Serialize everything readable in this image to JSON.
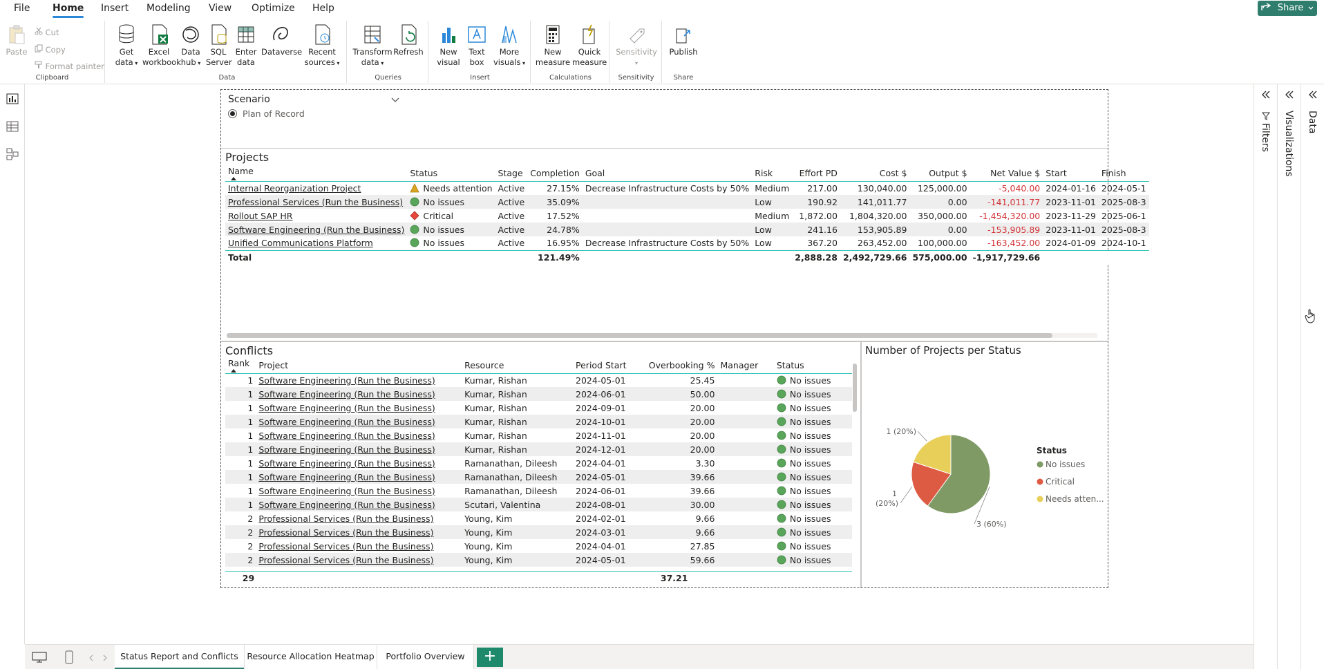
{
  "menu": {
    "items": [
      "File",
      "Home",
      "Insert",
      "Modeling",
      "View",
      "Optimize",
      "Help"
    ],
    "active": "Home",
    "share_label": "Share"
  },
  "ribbon": {
    "clipboard": {
      "label": "Clipboard",
      "paste": "Paste",
      "cut": "Cut",
      "copy": "Copy",
      "format_painter": "Format painter"
    },
    "data": {
      "label": "Data",
      "get_data": [
        "Get",
        "data"
      ],
      "excel": [
        "Excel",
        "workbook"
      ],
      "data_hub": [
        "Data",
        "hub"
      ],
      "sql": [
        "SQL",
        "Server"
      ],
      "enter_data": [
        "Enter",
        "data"
      ],
      "dataverse": "Dataverse",
      "recent": [
        "Recent",
        "sources"
      ]
    },
    "queries": {
      "label": "Queries",
      "transform": [
        "Transform",
        "data"
      ],
      "refresh": "Refresh"
    },
    "insert": {
      "label": "Insert",
      "new_visual": [
        "New",
        "visual"
      ],
      "text_box": [
        "Text",
        "box"
      ],
      "more_visuals": [
        "More",
        "visuals"
      ]
    },
    "calculations": {
      "label": "Calculations",
      "new_measure": [
        "New",
        "measure"
      ],
      "quick_measure": [
        "Quick",
        "measure"
      ]
    },
    "sensitivity": {
      "label": "Sensitivity",
      "btn": "Sensitivity"
    },
    "share": {
      "label": "Share",
      "publish": "Publish"
    }
  },
  "scenario": {
    "title": "Scenario",
    "option": "Plan of Record"
  },
  "projects": {
    "title": "Projects",
    "columns": [
      "Name",
      "Status",
      "Stage",
      "Completion",
      "Goal",
      "Risk",
      "Effort PD",
      "Cost $",
      "Output $",
      "Net Value $",
      "Start",
      "Finish"
    ],
    "rows": [
      {
        "name": "Internal Reorganization Project",
        "status": "Needs attention",
        "status_icon": "warning-triangle-icon",
        "stage": "Active",
        "completion": "27.15%",
        "goal": "Decrease Infrastructure Costs by 50%",
        "risk": "Medium",
        "effort": "217.00",
        "cost": "130,040.00",
        "output": "125,000.00",
        "net": "-5,040.00",
        "start": "2024-01-16",
        "finish": "2024-05-1"
      },
      {
        "name": "Professional Services (Run the Business)",
        "status": "No issues",
        "status_icon": "green-circle-icon",
        "stage": "Active",
        "completion": "35.09%",
        "goal": "",
        "risk": "Low",
        "effort": "190.92",
        "cost": "141,011.77",
        "output": "0.00",
        "net": "-141,011.77",
        "start": "2023-11-01",
        "finish": "2025-08-3"
      },
      {
        "name": "Rollout SAP HR",
        "status": "Critical",
        "status_icon": "red-diamond-icon",
        "stage": "Active",
        "completion": "17.52%",
        "goal": "",
        "risk": "Medium",
        "effort": "1,872.00",
        "cost": "1,804,320.00",
        "output": "350,000.00",
        "net": "-1,454,320.00",
        "start": "2023-11-29",
        "finish": "2025-06-1"
      },
      {
        "name": "Software Engineering (Run the Business)",
        "status": "No issues",
        "status_icon": "green-circle-icon",
        "stage": "Active",
        "completion": "24.78%",
        "goal": "",
        "risk": "Low",
        "effort": "241.16",
        "cost": "153,905.89",
        "output": "0.00",
        "net": "-153,905.89",
        "start": "2023-11-01",
        "finish": "2025-08-3"
      },
      {
        "name": "Unified Communications Platform",
        "status": "No issues",
        "status_icon": "green-circle-icon",
        "stage": "Active",
        "completion": "16.95%",
        "goal": "Decrease Infrastructure Costs by 50%",
        "risk": "Low",
        "effort": "367.20",
        "cost": "263,452.00",
        "output": "100,000.00",
        "net": "-163,452.00",
        "start": "2024-01-09",
        "finish": "2024-10-1"
      }
    ],
    "total": {
      "label": "Total",
      "completion": "121.49%",
      "effort": "2,888.28",
      "cost": "2,492,729.66",
      "output": "575,000.00",
      "net": "-1,917,729.66"
    }
  },
  "conflicts": {
    "title": "Conflicts",
    "columns": [
      "Rank",
      "Project",
      "Resource",
      "Period Start",
      "Overbooking %",
      "Manager",
      "Status"
    ],
    "rows": [
      {
        "rank": "1",
        "project": "Software Engineering (Run the Business)",
        "resource": "Kumar, Rishan",
        "period": "2024-05-01",
        "overbooking": "25.45",
        "manager": "",
        "status": "No issues"
      },
      {
        "rank": "1",
        "project": "Software Engineering (Run the Business)",
        "resource": "Kumar, Rishan",
        "period": "2024-06-01",
        "overbooking": "50.00",
        "manager": "",
        "status": "No issues"
      },
      {
        "rank": "1",
        "project": "Software Engineering (Run the Business)",
        "resource": "Kumar, Rishan",
        "period": "2024-09-01",
        "overbooking": "20.00",
        "manager": "",
        "status": "No issues"
      },
      {
        "rank": "1",
        "project": "Software Engineering (Run the Business)",
        "resource": "Kumar, Rishan",
        "period": "2024-10-01",
        "overbooking": "20.00",
        "manager": "",
        "status": "No issues"
      },
      {
        "rank": "1",
        "project": "Software Engineering (Run the Business)",
        "resource": "Kumar, Rishan",
        "period": "2024-11-01",
        "overbooking": "20.00",
        "manager": "",
        "status": "No issues"
      },
      {
        "rank": "1",
        "project": "Software Engineering (Run the Business)",
        "resource": "Kumar, Rishan",
        "period": "2024-12-01",
        "overbooking": "20.00",
        "manager": "",
        "status": "No issues"
      },
      {
        "rank": "1",
        "project": "Software Engineering (Run the Business)",
        "resource": "Ramanathan, Dileesh",
        "period": "2024-04-01",
        "overbooking": "3.30",
        "manager": "",
        "status": "No issues"
      },
      {
        "rank": "1",
        "project": "Software Engineering (Run the Business)",
        "resource": "Ramanathan, Dileesh",
        "period": "2024-05-01",
        "overbooking": "39.66",
        "manager": "",
        "status": "No issues"
      },
      {
        "rank": "1",
        "project": "Software Engineering (Run the Business)",
        "resource": "Ramanathan, Dileesh",
        "period": "2024-06-01",
        "overbooking": "39.66",
        "manager": "",
        "status": "No issues"
      },
      {
        "rank": "1",
        "project": "Software Engineering (Run the Business)",
        "resource": "Scutari, Valentina",
        "period": "2024-08-01",
        "overbooking": "30.00",
        "manager": "",
        "status": "No issues"
      },
      {
        "rank": "2",
        "project": "Professional Services (Run the Business)",
        "resource": "Young, Kim",
        "period": "2024-02-01",
        "overbooking": "9.66",
        "manager": "",
        "status": "No issues"
      },
      {
        "rank": "2",
        "project": "Professional Services (Run the Business)",
        "resource": "Young, Kim",
        "period": "2024-03-01",
        "overbooking": "9.66",
        "manager": "",
        "status": "No issues"
      },
      {
        "rank": "2",
        "project": "Professional Services (Run the Business)",
        "resource": "Young, Kim",
        "period": "2024-04-01",
        "overbooking": "27.85",
        "manager": "",
        "status": "No issues"
      },
      {
        "rank": "2",
        "project": "Professional Services (Run the Business)",
        "resource": "Young, Kim",
        "period": "2024-05-01",
        "overbooking": "59.66",
        "manager": "",
        "status": "No issues"
      }
    ],
    "total": {
      "rank": "29",
      "overbooking": "37.21"
    }
  },
  "chart_data": {
    "type": "pie",
    "title": "Number of Projects per Status",
    "legend_title": "Status",
    "legend_placement": "right",
    "slices": [
      {
        "name": "No issues",
        "legend_label": "No issues",
        "value": 3,
        "label": "3 (60%)",
        "color": "#7f9a65"
      },
      {
        "name": "Critical",
        "legend_label": "Critical",
        "value": 1,
        "label": "1 (20%)",
        "color": "#dd5a43"
      },
      {
        "name": "Needs attention",
        "legend_label": "Needs atten...",
        "value": 1,
        "label": "1 (20%)",
        "color": "#e8cf5a"
      }
    ]
  },
  "panes": {
    "filters": "Filters",
    "visualizations": "Visualizations",
    "data": "Data"
  },
  "pages": {
    "tabs": [
      "Status Report and Conflicts",
      "Resource Allocation Heatmap",
      "Portfolio Overview"
    ],
    "active": "Status Report and Conflicts",
    "add_label": "+"
  },
  "colors": {
    "accent": "#2f7d6d",
    "table_rule": "#2ec4b6",
    "negative": "#d13438"
  }
}
